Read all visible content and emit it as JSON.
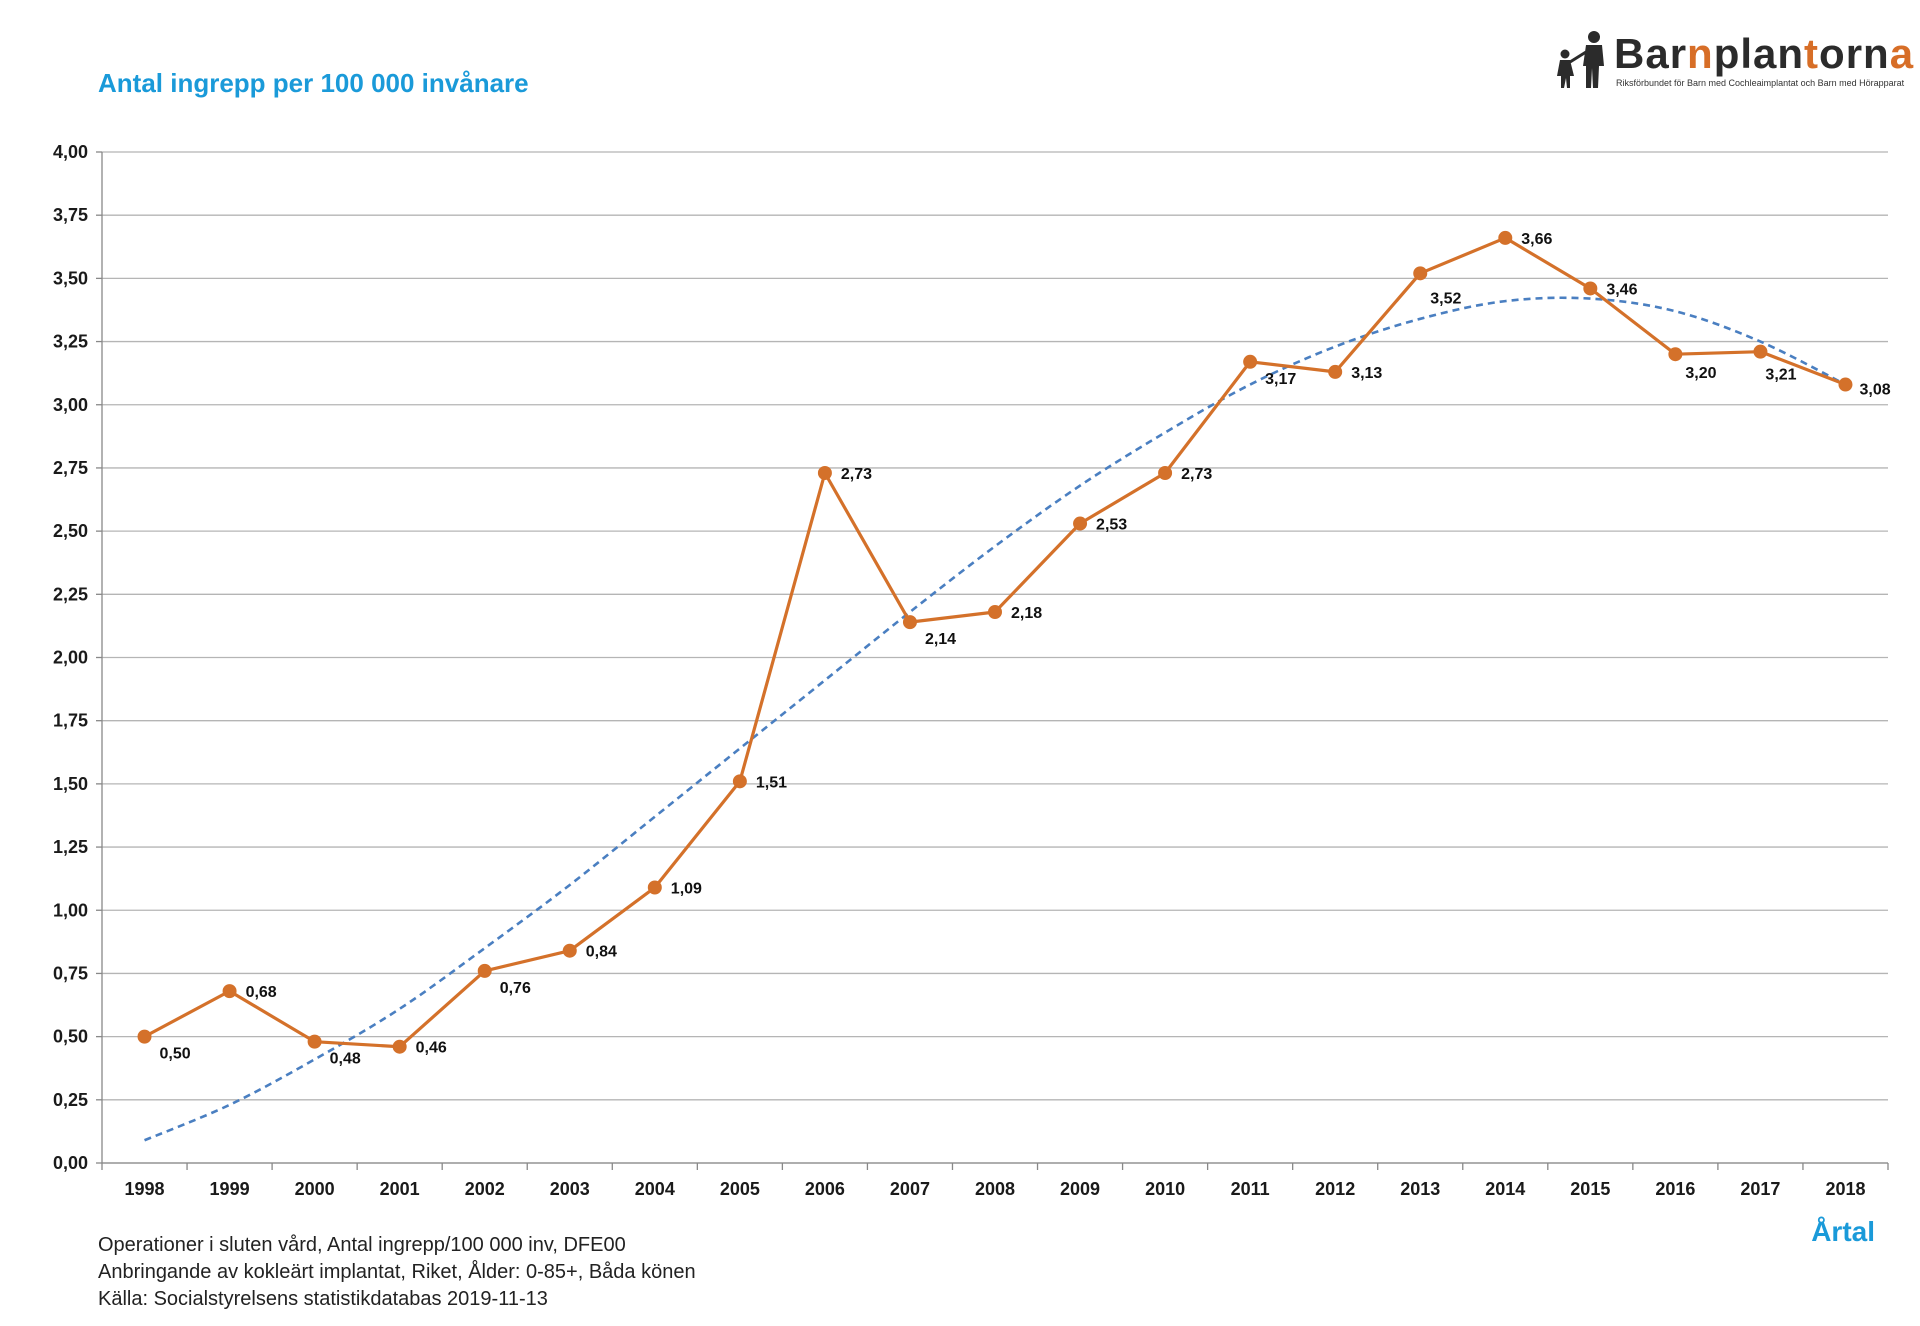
{
  "header": {
    "title": "Antal ingrepp per 100 000 invånare"
  },
  "logo": {
    "name_part1": "Bar",
    "name_part2": "n",
    "name_part3": "plan",
    "name_part4": "t",
    "name_part5": "orn",
    "name_part6": "a",
    "subtitle": "Riksförbundet för Barn med Cochleaimplantat och Barn med Hörapparat"
  },
  "footer": {
    "xlabel": "Årtal",
    "source_lines": [
      "Operationer i sluten vård, Antal ingrepp/100 000 inv, DFE00",
      "Anbringande av kokleärt implantat, Riket, Ålder: 0-85+, Båda könen",
      "Källa: Socialstyrelsens statistikdatabas 2019-11-13"
    ]
  },
  "colors": {
    "series": "#d4712a",
    "trend": "#4a7fc1",
    "title": "#1a9ad9",
    "grid": "#b5b5b5"
  },
  "chart_data": {
    "type": "line",
    "title": "Antal ingrepp per 100 000 invånare",
    "xlabel": "Årtal",
    "ylabel": "",
    "ylim": [
      0,
      4
    ],
    "y_ticks": [
      "0,00",
      "0,25",
      "0,50",
      "0,75",
      "1,00",
      "1,25",
      "1,50",
      "1,75",
      "2,00",
      "2,25",
      "2,50",
      "2,75",
      "3,00",
      "3,25",
      "3,50",
      "3,75",
      "4,00"
    ],
    "y_tick_values": [
      0,
      0.25,
      0.5,
      0.75,
      1,
      1.25,
      1.5,
      1.75,
      2,
      2.25,
      2.5,
      2.75,
      3,
      3.25,
      3.5,
      3.75,
      4
    ],
    "grid": true,
    "categories": [
      "1998",
      "1999",
      "2000",
      "2001",
      "2002",
      "2003",
      "2004",
      "2005",
      "2006",
      "2007",
      "2008",
      "2009",
      "2010",
      "2011",
      "2012",
      "2013",
      "2014",
      "2015",
      "2016",
      "2017",
      "2018"
    ],
    "series": [
      {
        "values": [
          0.5,
          0.68,
          0.48,
          0.46,
          0.76,
          0.84,
          1.09,
          1.51,
          2.73,
          2.14,
          2.18,
          2.53,
          2.73,
          3.17,
          3.13,
          3.52,
          3.66,
          3.46,
          3.2,
          3.21,
          3.08
        ],
        "labels": [
          "0,50",
          "0,68",
          "0,48",
          "0,46",
          "0,76",
          "0,84",
          "1,09",
          "1,51",
          "2,73",
          "2,14",
          "2,18",
          "2,53",
          "2,73",
          "3,17",
          "3,13",
          "3,52",
          "3,66",
          "3,46",
          "3,20",
          "3,21",
          "3,08"
        ],
        "color": "#d4712a",
        "marker": "circle"
      },
      {
        "values": [
          0.09,
          0.23,
          0.41,
          0.61,
          0.85,
          1.1,
          1.37,
          1.64,
          1.91,
          2.18,
          2.44,
          2.68,
          2.89,
          3.08,
          3.23,
          3.34,
          3.41,
          3.42,
          3.37,
          3.25,
          3.08
        ],
        "color": "#4a7fc1",
        "style": "dashed",
        "kind": "trendline"
      }
    ]
  }
}
